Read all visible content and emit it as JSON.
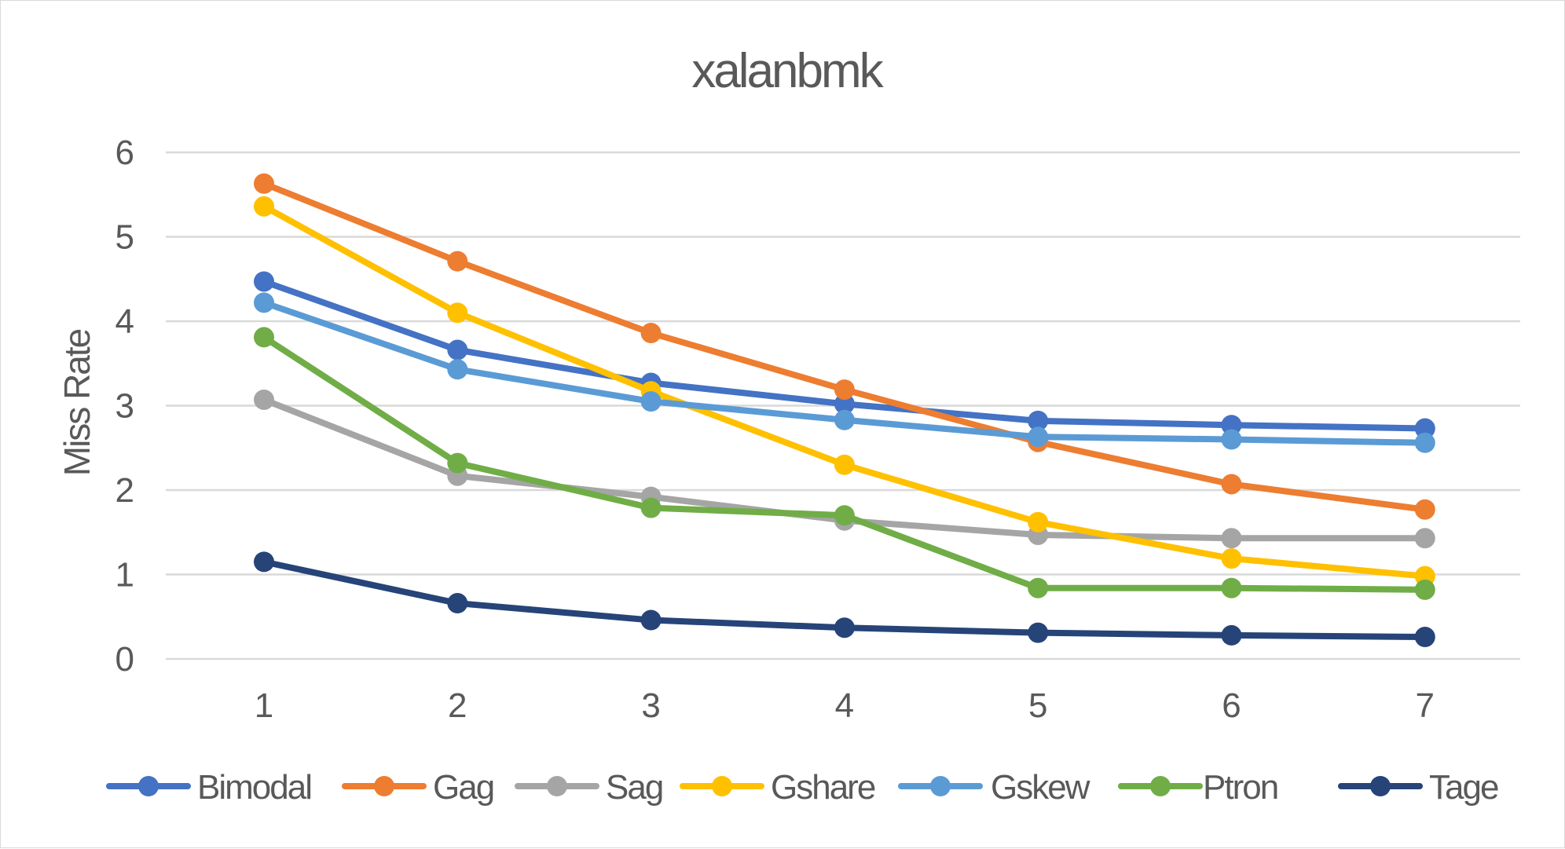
{
  "chart_data": {
    "type": "line",
    "title": "xalanbmk",
    "xlabel": "",
    "ylabel": "Miss Rate",
    "x": [
      "1",
      "2",
      "3",
      "4",
      "5",
      "6",
      "7"
    ],
    "ylim": [
      0,
      6
    ],
    "yticks": [
      "0",
      "1",
      "2",
      "3",
      "4",
      "5",
      "6"
    ],
    "grid": true,
    "legend_position": "bottom",
    "series": [
      {
        "name": "Bimodal",
        "color": "#4472C4",
        "values": [
          4.47,
          3.66,
          3.27,
          3.02,
          2.82,
          2.77,
          2.73
        ]
      },
      {
        "name": "Gag",
        "color": "#ED7D31",
        "values": [
          5.63,
          4.71,
          3.86,
          3.19,
          2.57,
          2.07,
          1.77
        ]
      },
      {
        "name": "Sag",
        "color": "#A5A5A5",
        "values": [
          3.07,
          2.17,
          1.92,
          1.64,
          1.47,
          1.43,
          1.43
        ]
      },
      {
        "name": "Gshare",
        "color": "#FFC000",
        "values": [
          5.36,
          4.1,
          3.17,
          2.3,
          1.62,
          1.19,
          0.98
        ]
      },
      {
        "name": "Gskew",
        "color": "#5B9BD5",
        "values": [
          4.22,
          3.43,
          3.05,
          2.83,
          2.63,
          2.6,
          2.56
        ]
      },
      {
        "name": "Ptron",
        "color": "#70AD47",
        "values": [
          3.81,
          2.32,
          1.79,
          1.7,
          0.84,
          0.84,
          0.82
        ]
      },
      {
        "name": "Tage",
        "color": "#264478",
        "values": [
          1.15,
          0.66,
          0.46,
          0.37,
          0.31,
          0.28,
          0.26
        ]
      }
    ]
  }
}
